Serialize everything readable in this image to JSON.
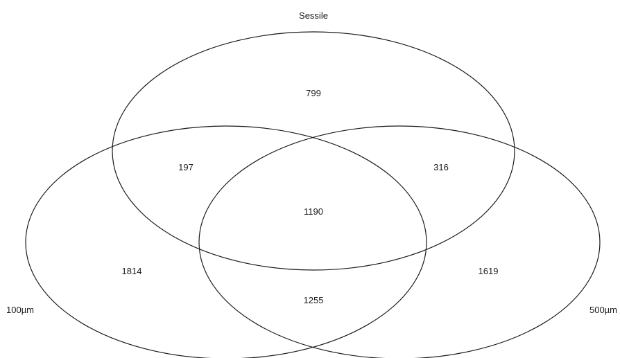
{
  "venn": {
    "sets": [
      {
        "id": "sessile",
        "label": "Sessile"
      },
      {
        "id": "um100",
        "label": "100µm"
      },
      {
        "id": "um500",
        "label": "500µm"
      }
    ],
    "regions": {
      "sessile_only": "799",
      "um100_only": "1814",
      "um500_only": "1619",
      "sessile_um100": "197",
      "sessile_um500": "316",
      "um100_um500": "1255",
      "all_three": "1190"
    }
  }
}
